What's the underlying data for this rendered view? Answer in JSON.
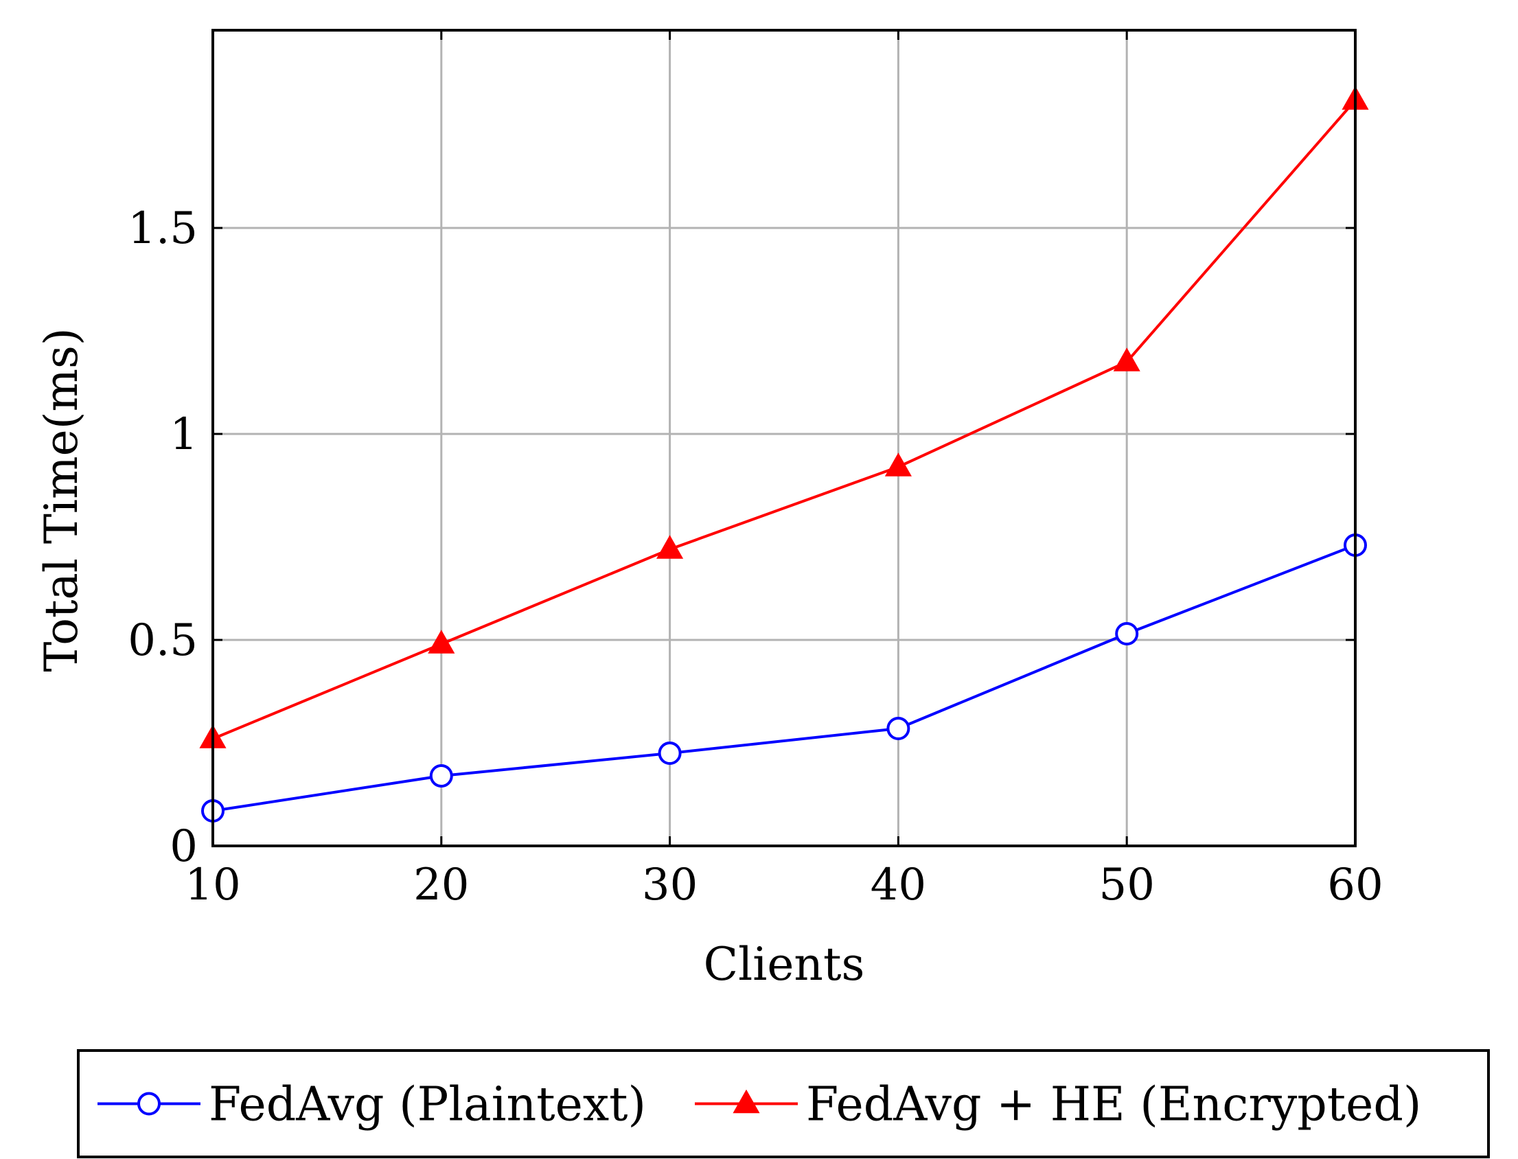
{
  "chart_data": {
    "type": "line",
    "title": "",
    "xlabel": "Clients",
    "ylabel": "Total Time(ms)",
    "x": [
      10,
      20,
      30,
      40,
      50,
      60
    ],
    "xlim": [
      10,
      60
    ],
    "ylim": [
      0,
      1.98
    ],
    "xticks": [
      10,
      20,
      30,
      40,
      50,
      60
    ],
    "xtick_labels": [
      "10",
      "20",
      "30",
      "40",
      "50",
      "60"
    ],
    "yticks": [
      0,
      0.5,
      1,
      1.5
    ],
    "ytick_labels": [
      "0",
      "0.5",
      "1",
      "1.5"
    ],
    "grid": true,
    "legend_position": "bottom-center-outside",
    "series": [
      {
        "name": "FedAvg (Plaintext)",
        "color": "#0000ff",
        "marker": "open-circle",
        "values": [
          0.085,
          0.17,
          0.225,
          0.285,
          0.515,
          0.73
        ]
      },
      {
        "name": "FedAvg + HE (Encrypted)",
        "color": "#ff0000",
        "marker": "filled-triangle",
        "values": [
          0.26,
          0.49,
          0.72,
          0.92,
          1.175,
          1.81
        ]
      }
    ]
  }
}
